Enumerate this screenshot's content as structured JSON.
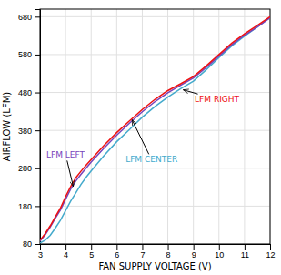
{
  "chart_data": {
    "type": "line",
    "title": "",
    "xlabel": "FAN SUPPLY VOLTAGE (V)",
    "ylabel": "AIRFLOW (LFM)",
    "x": [
      3.0,
      3.2,
      3.4,
      3.6,
      3.8,
      4.0,
      4.2,
      4.4,
      4.6,
      4.8,
      5.0,
      5.5,
      6.0,
      6.5,
      7.0,
      7.5,
      8.0,
      8.5,
      9.0,
      9.5,
      10.0,
      10.5,
      11.0,
      11.5,
      12.0
    ],
    "series": [
      {
        "name": "LFM CENTER",
        "color": "#44aacc",
        "values": [
          83,
          90,
          103,
          122,
          143,
          168,
          193,
          215,
          237,
          256,
          273,
          313,
          350,
          382,
          415,
          443,
          468,
          490,
          510,
          540,
          572,
          603,
          629,
          653,
          679
        ]
      },
      {
        "name": "LFM LEFT",
        "color": "#7744bb",
        "values": [
          88,
          104,
          125,
          148,
          170,
          198,
          225,
          246,
          264,
          280,
          296,
          333,
          367,
          399,
          429,
          456,
          479,
          499,
          518,
          546,
          576,
          606,
          631,
          653,
          677
        ]
      },
      {
        "name": "LFM RIGHT",
        "color": "#ee1111",
        "values": [
          90,
          107,
          128,
          152,
          175,
          205,
          232,
          255,
          272,
          288,
          303,
          340,
          374,
          405,
          435,
          462,
          485,
          503,
          522,
          550,
          580,
          610,
          635,
          657,
          680
        ]
      }
    ],
    "xlim": [
      3,
      12
    ],
    "ylim": [
      80,
      700
    ],
    "xticks": [
      3,
      4,
      5,
      6,
      7,
      8,
      9,
      10,
      11,
      12
    ],
    "yticks": [
      80,
      180,
      280,
      380,
      480,
      580,
      680
    ],
    "grid": true,
    "annotations": [
      {
        "text": "LFM RIGHT",
        "x": 8.6,
        "y": 487,
        "text_x": 9.05,
        "text_y": 462,
        "color": "#ee1111"
      },
      {
        "text": "LFM LEFT",
        "x": 4.3,
        "y": 232,
        "text_x": 3.25,
        "text_y": 315,
        "color": "#7744bb"
      },
      {
        "text": "LFM CENTER",
        "x": 6.6,
        "y": 408,
        "text_x": 6.35,
        "text_y": 303,
        "color": "#44aacc"
      }
    ]
  }
}
